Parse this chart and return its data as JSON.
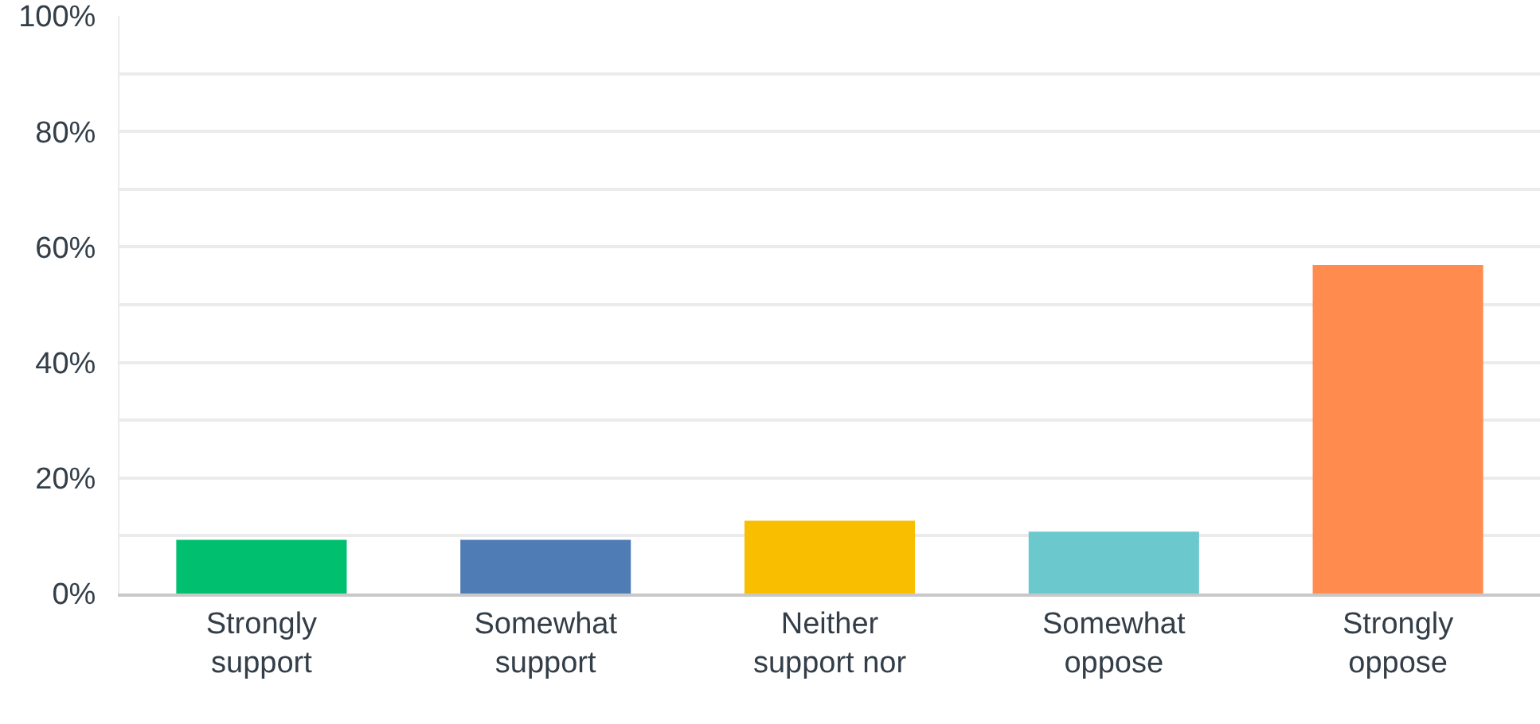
{
  "chart_data": {
    "type": "bar",
    "categories": [
      "Strongly support",
      "Somewhat support",
      "Neither support nor",
      "Somewhat oppose",
      "Strongly oppose"
    ],
    "values": [
      9.3,
      9.3,
      12.6,
      10.7,
      56.9
    ],
    "colors": [
      "#00bf6f",
      "#507cb6",
      "#f9be00",
      "#6bc8cd",
      "#ff8b4f"
    ],
    "ylim": [
      0,
      100
    ],
    "yticks": [
      {
        "value": 0,
        "label": "0%"
      },
      {
        "value": 10,
        "label": null
      },
      {
        "value": 20,
        "label": "20%"
      },
      {
        "value": 30,
        "label": null
      },
      {
        "value": 40,
        "label": "40%"
      },
      {
        "value": 50,
        "label": null
      },
      {
        "value": 60,
        "label": "60%"
      },
      {
        "value": 70,
        "label": null
      },
      {
        "value": 80,
        "label": "80%"
      },
      {
        "value": 90,
        "label": null
      },
      {
        "value": 100,
        "label": "100%"
      }
    ],
    "grid": "y"
  }
}
